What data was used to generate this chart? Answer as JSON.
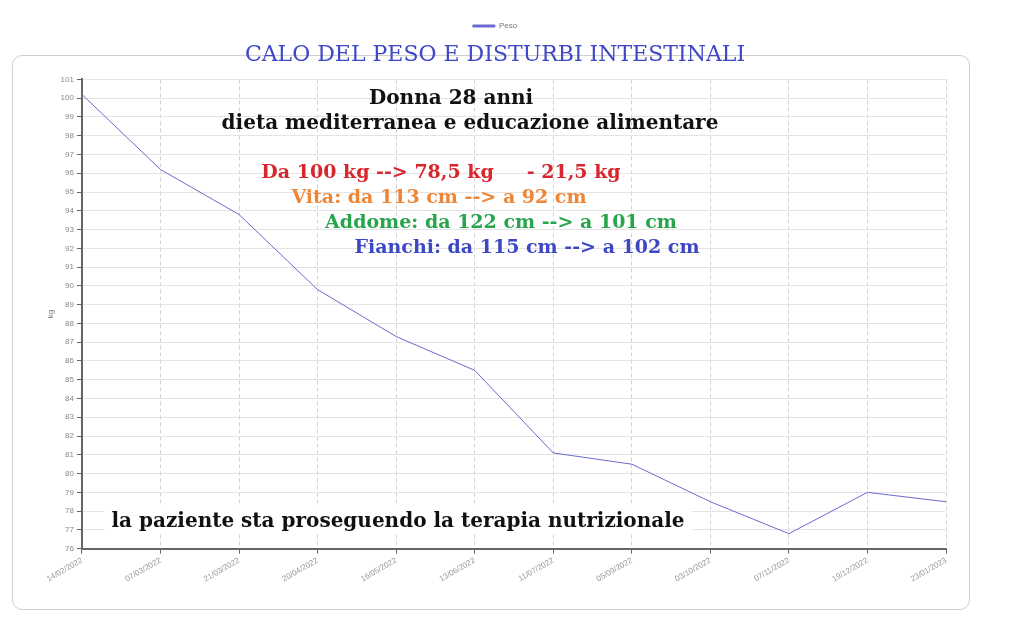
{
  "chart_data": {
    "type": "line",
    "title": "CALO DEL PESO E DISTURBI INTESTINALI",
    "ylabel": "kg",
    "categories": [
      "14/02/2022",
      "07/03/2022",
      "21/03/2022",
      "20/04/2022",
      "16/05/2022",
      "13/06/2022",
      "11/07/2022",
      "05/09/2022",
      "03/10/2022",
      "07/11/2022",
      "19/12/2022",
      "23/01/2023"
    ],
    "series": [
      {
        "name": "Peso",
        "color": "#6b6bcf",
        "values": [
          100.2,
          96.2,
          93.8,
          89.8,
          87.3,
          85.5,
          81.1,
          80.5,
          78.5,
          76.8,
          79.0,
          78.5
        ]
      }
    ],
    "ylim": [
      76,
      101
    ],
    "yticks": [
      76,
      77,
      78,
      79,
      80,
      81,
      82,
      83,
      84,
      85,
      86,
      87,
      88,
      89,
      90,
      91,
      92,
      93,
      94,
      95,
      96,
      97,
      98,
      99,
      100,
      101
    ],
    "grid": true,
    "legend": "top",
    "marker": "none",
    "annotations": [
      "Donna 28 anni",
      "dieta mediterranea e educazione alimentare",
      "Da 100 kg --> 78,5 kg     - 21,5 kg",
      "Vita: da 113 cm --> a 92 cm",
      "Addome: da 122 cm --> a 101 cm",
      "Fianchi: da 115 cm --> a 102 cm",
      "la paziente sta proseguendo la terapia nutrizionale"
    ]
  }
}
